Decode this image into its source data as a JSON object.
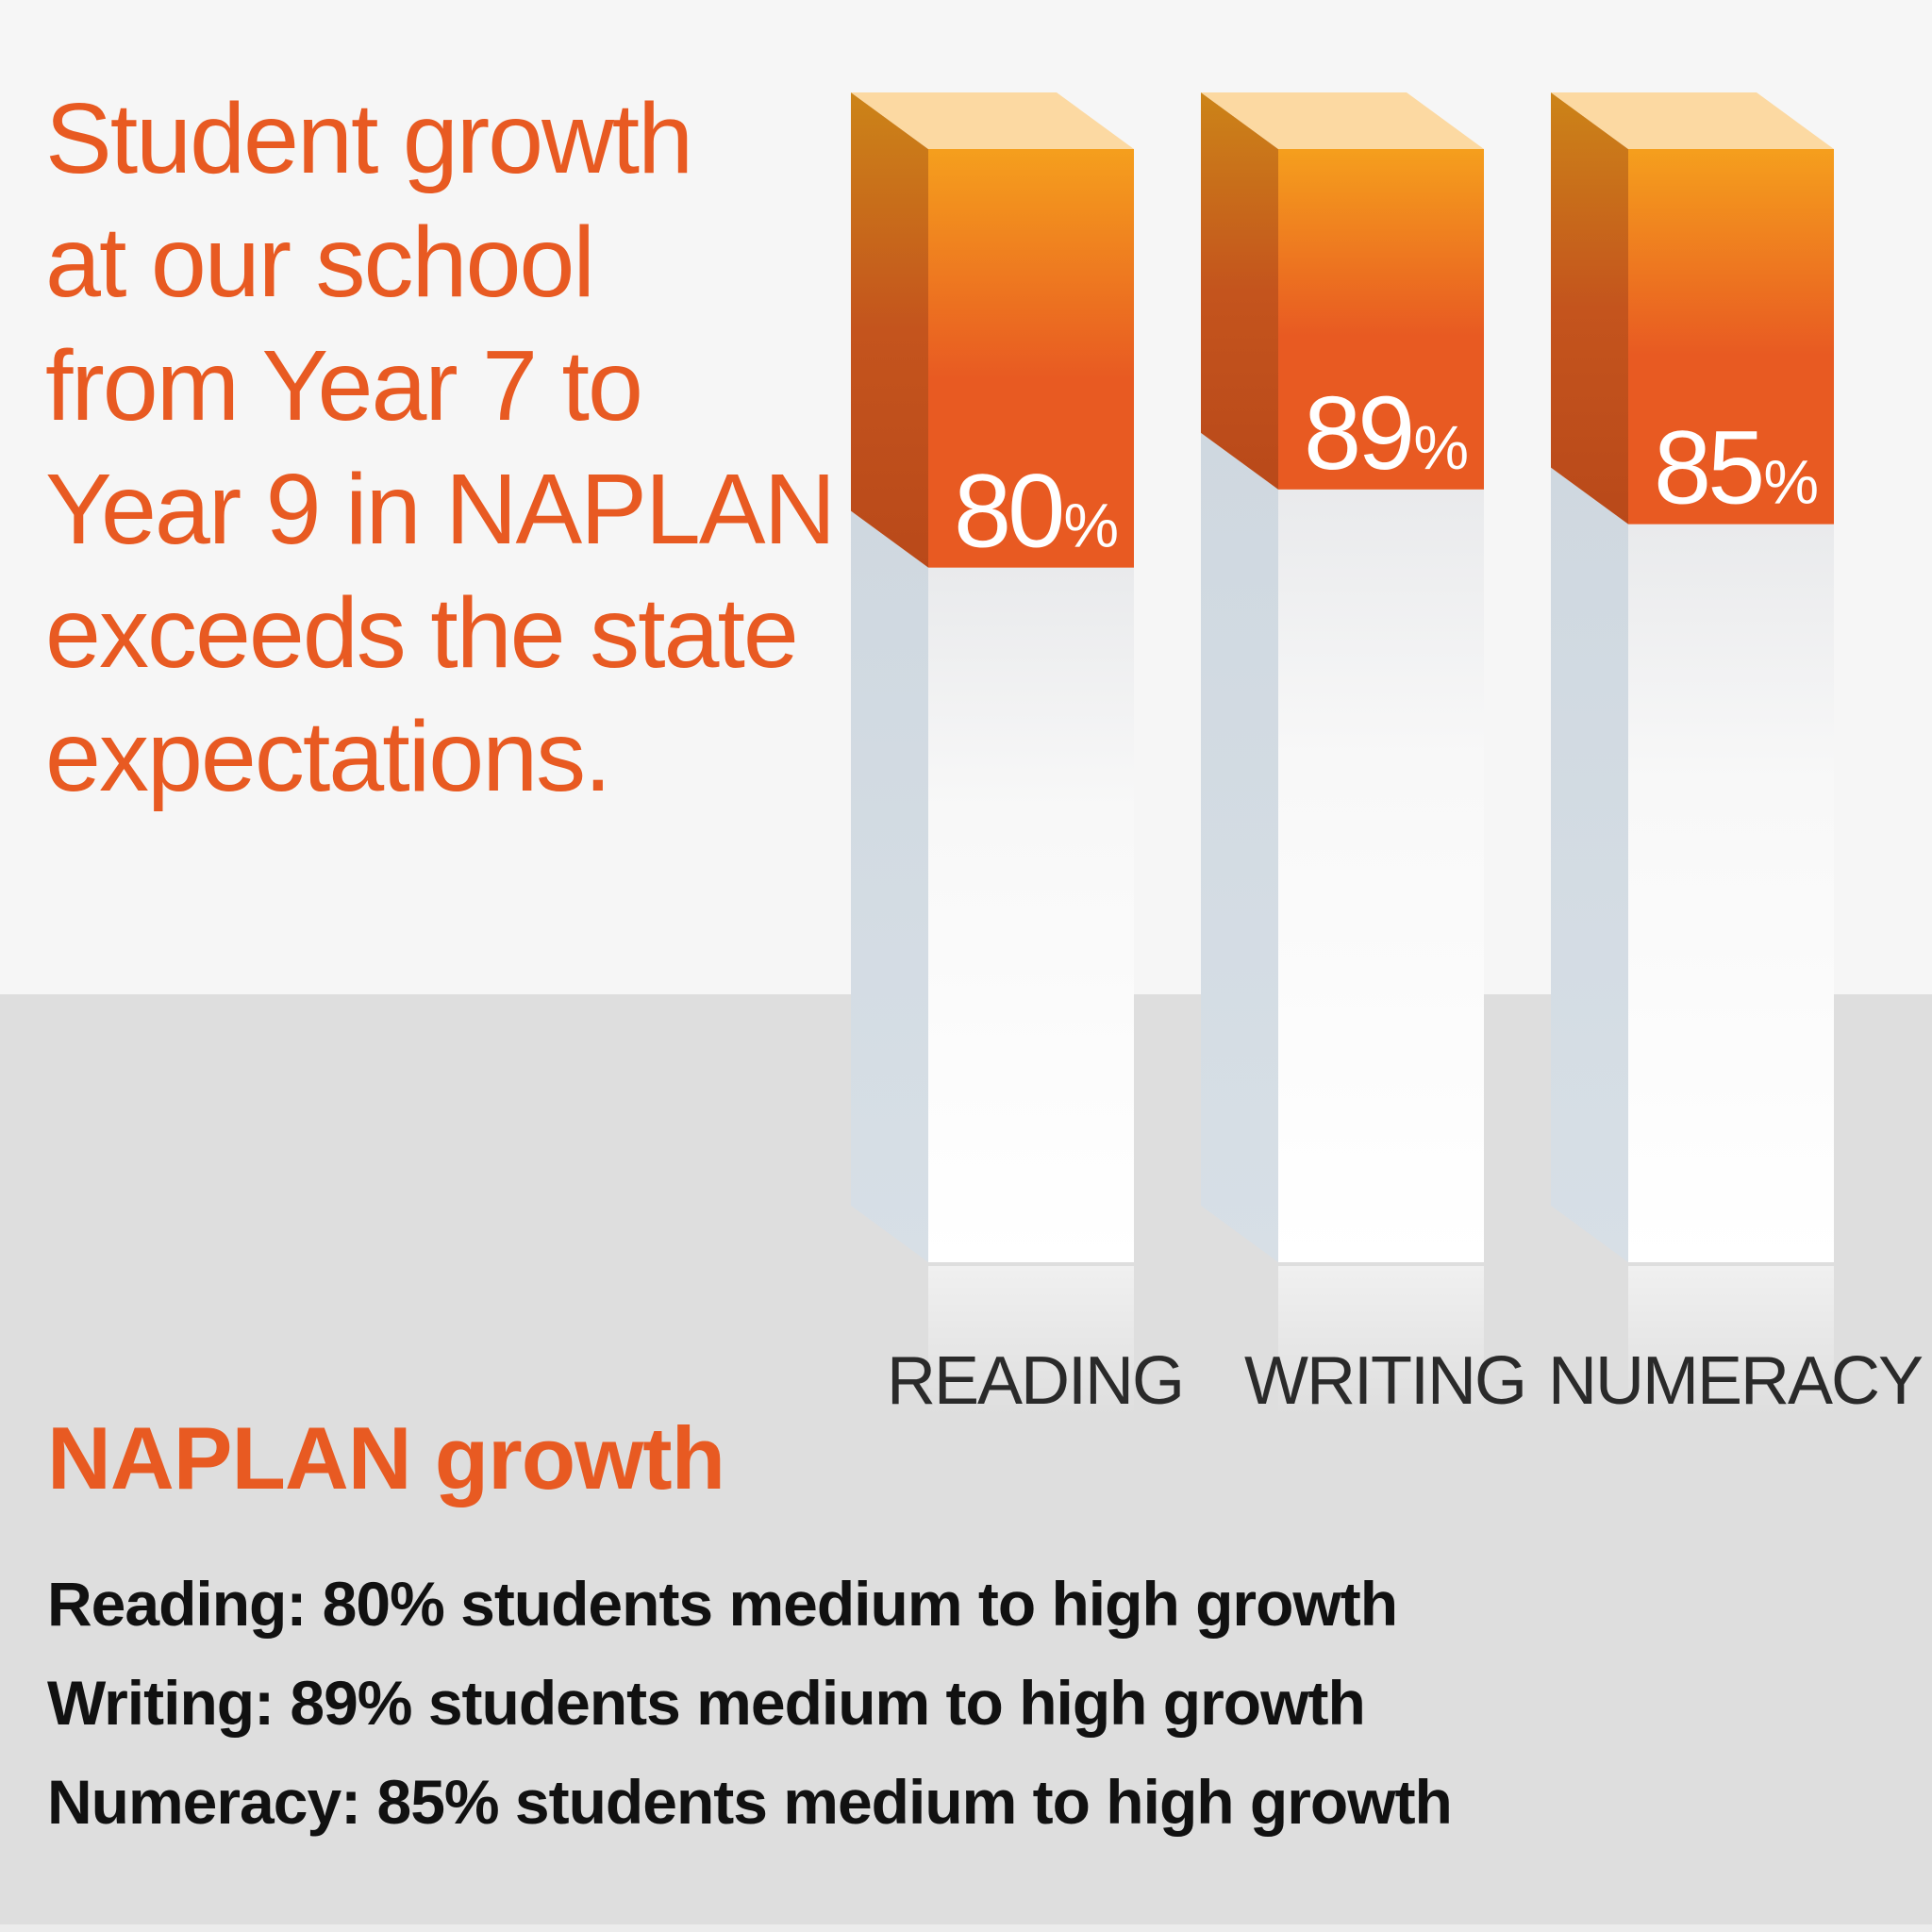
{
  "intro": {
    "lines": [
      "Student growth",
      "at our school",
      "from Year 7 to",
      "Year 9 in NAPLAN",
      "exceeds the state",
      "expectations."
    ]
  },
  "chart_data": {
    "type": "bar",
    "title": "NAPLAN growth",
    "categories": [
      "READING",
      "WRITING",
      "NUMERACY"
    ],
    "values": [
      80,
      89,
      85
    ],
    "value_labels": [
      "80",
      "89",
      "85"
    ],
    "value_suffix": "%",
    "ylim": [
      0,
      100
    ],
    "xlabel": "",
    "ylabel": "",
    "grid": false,
    "colors": {
      "bar_front_top": "#f59f1d",
      "bar_front_bottom": "#e85a22",
      "bar_side": "#c8571e",
      "bar_top": "#fcd9a2",
      "empty_front": "#ffffff",
      "empty_side": "#cdd6de"
    }
  },
  "summary": {
    "title": "NAPLAN growth",
    "lines": [
      "Reading: 80% students medium to high growth",
      "Writing: 89% students medium to high growth",
      "Numeracy: 85% students medium to high growth"
    ]
  }
}
